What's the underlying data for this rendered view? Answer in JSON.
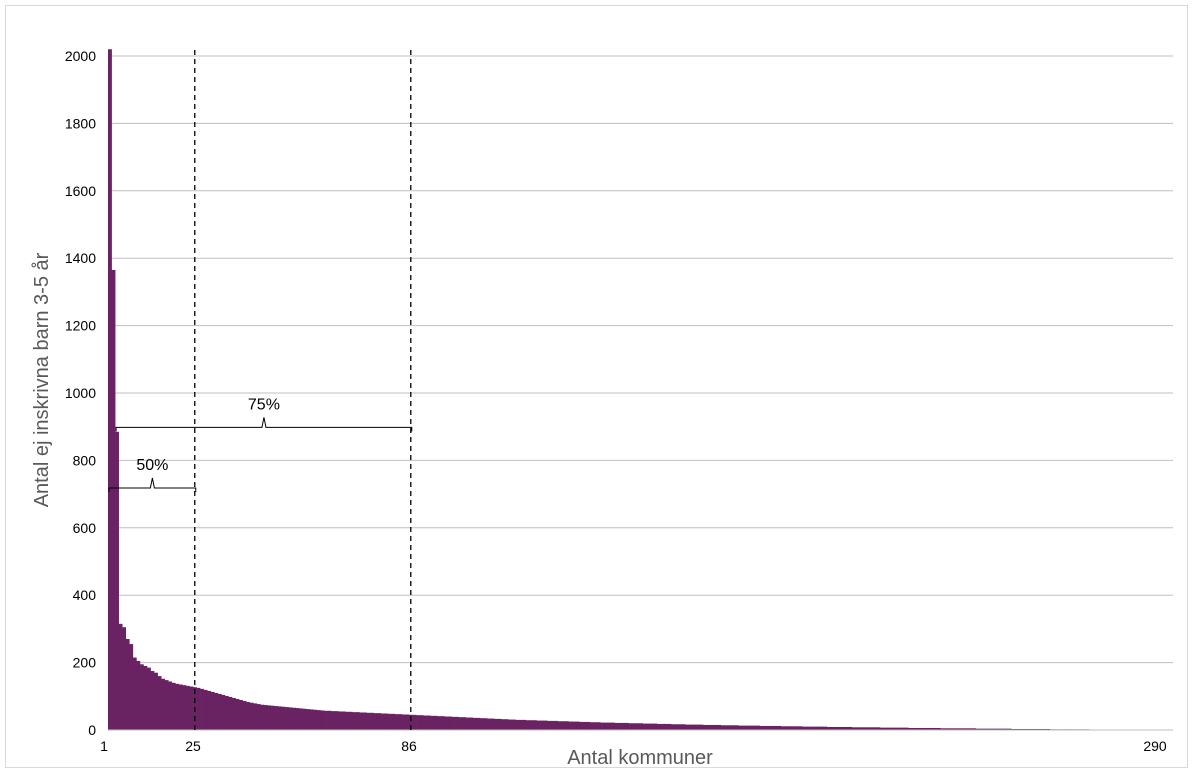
{
  "chart_data": {
    "type": "bar",
    "xlabel": "Antal kommuner",
    "ylabel": "Antal ej inskrivna barn 3-5 år",
    "ylim": [
      0,
      2000
    ],
    "yticks": [
      0,
      200,
      400,
      600,
      800,
      1000,
      1200,
      1400,
      1600,
      1800,
      2000
    ],
    "xlim": [
      1,
      290
    ],
    "xticks": [
      1,
      25,
      86,
      290
    ],
    "grid": true,
    "bar_color": "#6a2362",
    "values": [
      2020,
      1365,
      885,
      315,
      305,
      270,
      255,
      215,
      205,
      195,
      190,
      185,
      175,
      170,
      160,
      152,
      148,
      144,
      140,
      137,
      135,
      133,
      131,
      129,
      127,
      125,
      122,
      119,
      116,
      113,
      110,
      107,
      104,
      101,
      98,
      95,
      92,
      89,
      86,
      83,
      81,
      79,
      77,
      75,
      74,
      73,
      72,
      71,
      70,
      69,
      68,
      67,
      66,
      65,
      64,
      63,
      62,
      61,
      60,
      59,
      58,
      57,
      57,
      56,
      56,
      55,
      55,
      54,
      54,
      53,
      53,
      52,
      52,
      51,
      51,
      50,
      50,
      49,
      49,
      48,
      48,
      47,
      47,
      46,
      46,
      45,
      45,
      44,
      44,
      43,
      43,
      42,
      42,
      41,
      41,
      40,
      40,
      39,
      39,
      38,
      38,
      37,
      37,
      36,
      36,
      35,
      35,
      34,
      34,
      33,
      33,
      32,
      32,
      31,
      31,
      30,
      30,
      30,
      29,
      29,
      29,
      28,
      28,
      28,
      27,
      27,
      27,
      26,
      26,
      26,
      25,
      25,
      25,
      24,
      24,
      24,
      23,
      23,
      23,
      22,
      22,
      22,
      22,
      21,
      21,
      21,
      21,
      20,
      20,
      20,
      20,
      19,
      19,
      19,
      19,
      18,
      18,
      18,
      18,
      17,
      17,
      17,
      17,
      16,
      16,
      16,
      16,
      16,
      15,
      15,
      15,
      15,
      15,
      14,
      14,
      14,
      14,
      14,
      13,
      13,
      13,
      13,
      13,
      13,
      12,
      12,
      12,
      12,
      12,
      12,
      11,
      11,
      11,
      11,
      11,
      11,
      10,
      10,
      10,
      10,
      10,
      10,
      10,
      9,
      9,
      9,
      9,
      9,
      9,
      9,
      8,
      8,
      8,
      8,
      8,
      8,
      8,
      8,
      7,
      7,
      7,
      7,
      7,
      7,
      7,
      7,
      6,
      6,
      6,
      6,
      6,
      6,
      6,
      6,
      6,
      5,
      5,
      5,
      5,
      5,
      5,
      5,
      5,
      5,
      5,
      4,
      4,
      4,
      4,
      4,
      4,
      4,
      4,
      4,
      4,
      3,
      3,
      3,
      3,
      3,
      3,
      3,
      3,
      3,
      3,
      3,
      2,
      2,
      2,
      2,
      2,
      2,
      2,
      2,
      2,
      2,
      2,
      1,
      1,
      1,
      1,
      1,
      1,
      1,
      1,
      1,
      1,
      1,
      1,
      1
    ],
    "reference_lines": [
      {
        "x": 25,
        "style": "dashed"
      },
      {
        "x": 86,
        "style": "dashed"
      }
    ],
    "annotations": [
      {
        "text": "50%",
        "x_from": 1,
        "x_to": 25,
        "y": 730
      },
      {
        "text": "75%",
        "x_from": 3,
        "x_to": 86,
        "y": 910
      }
    ]
  }
}
